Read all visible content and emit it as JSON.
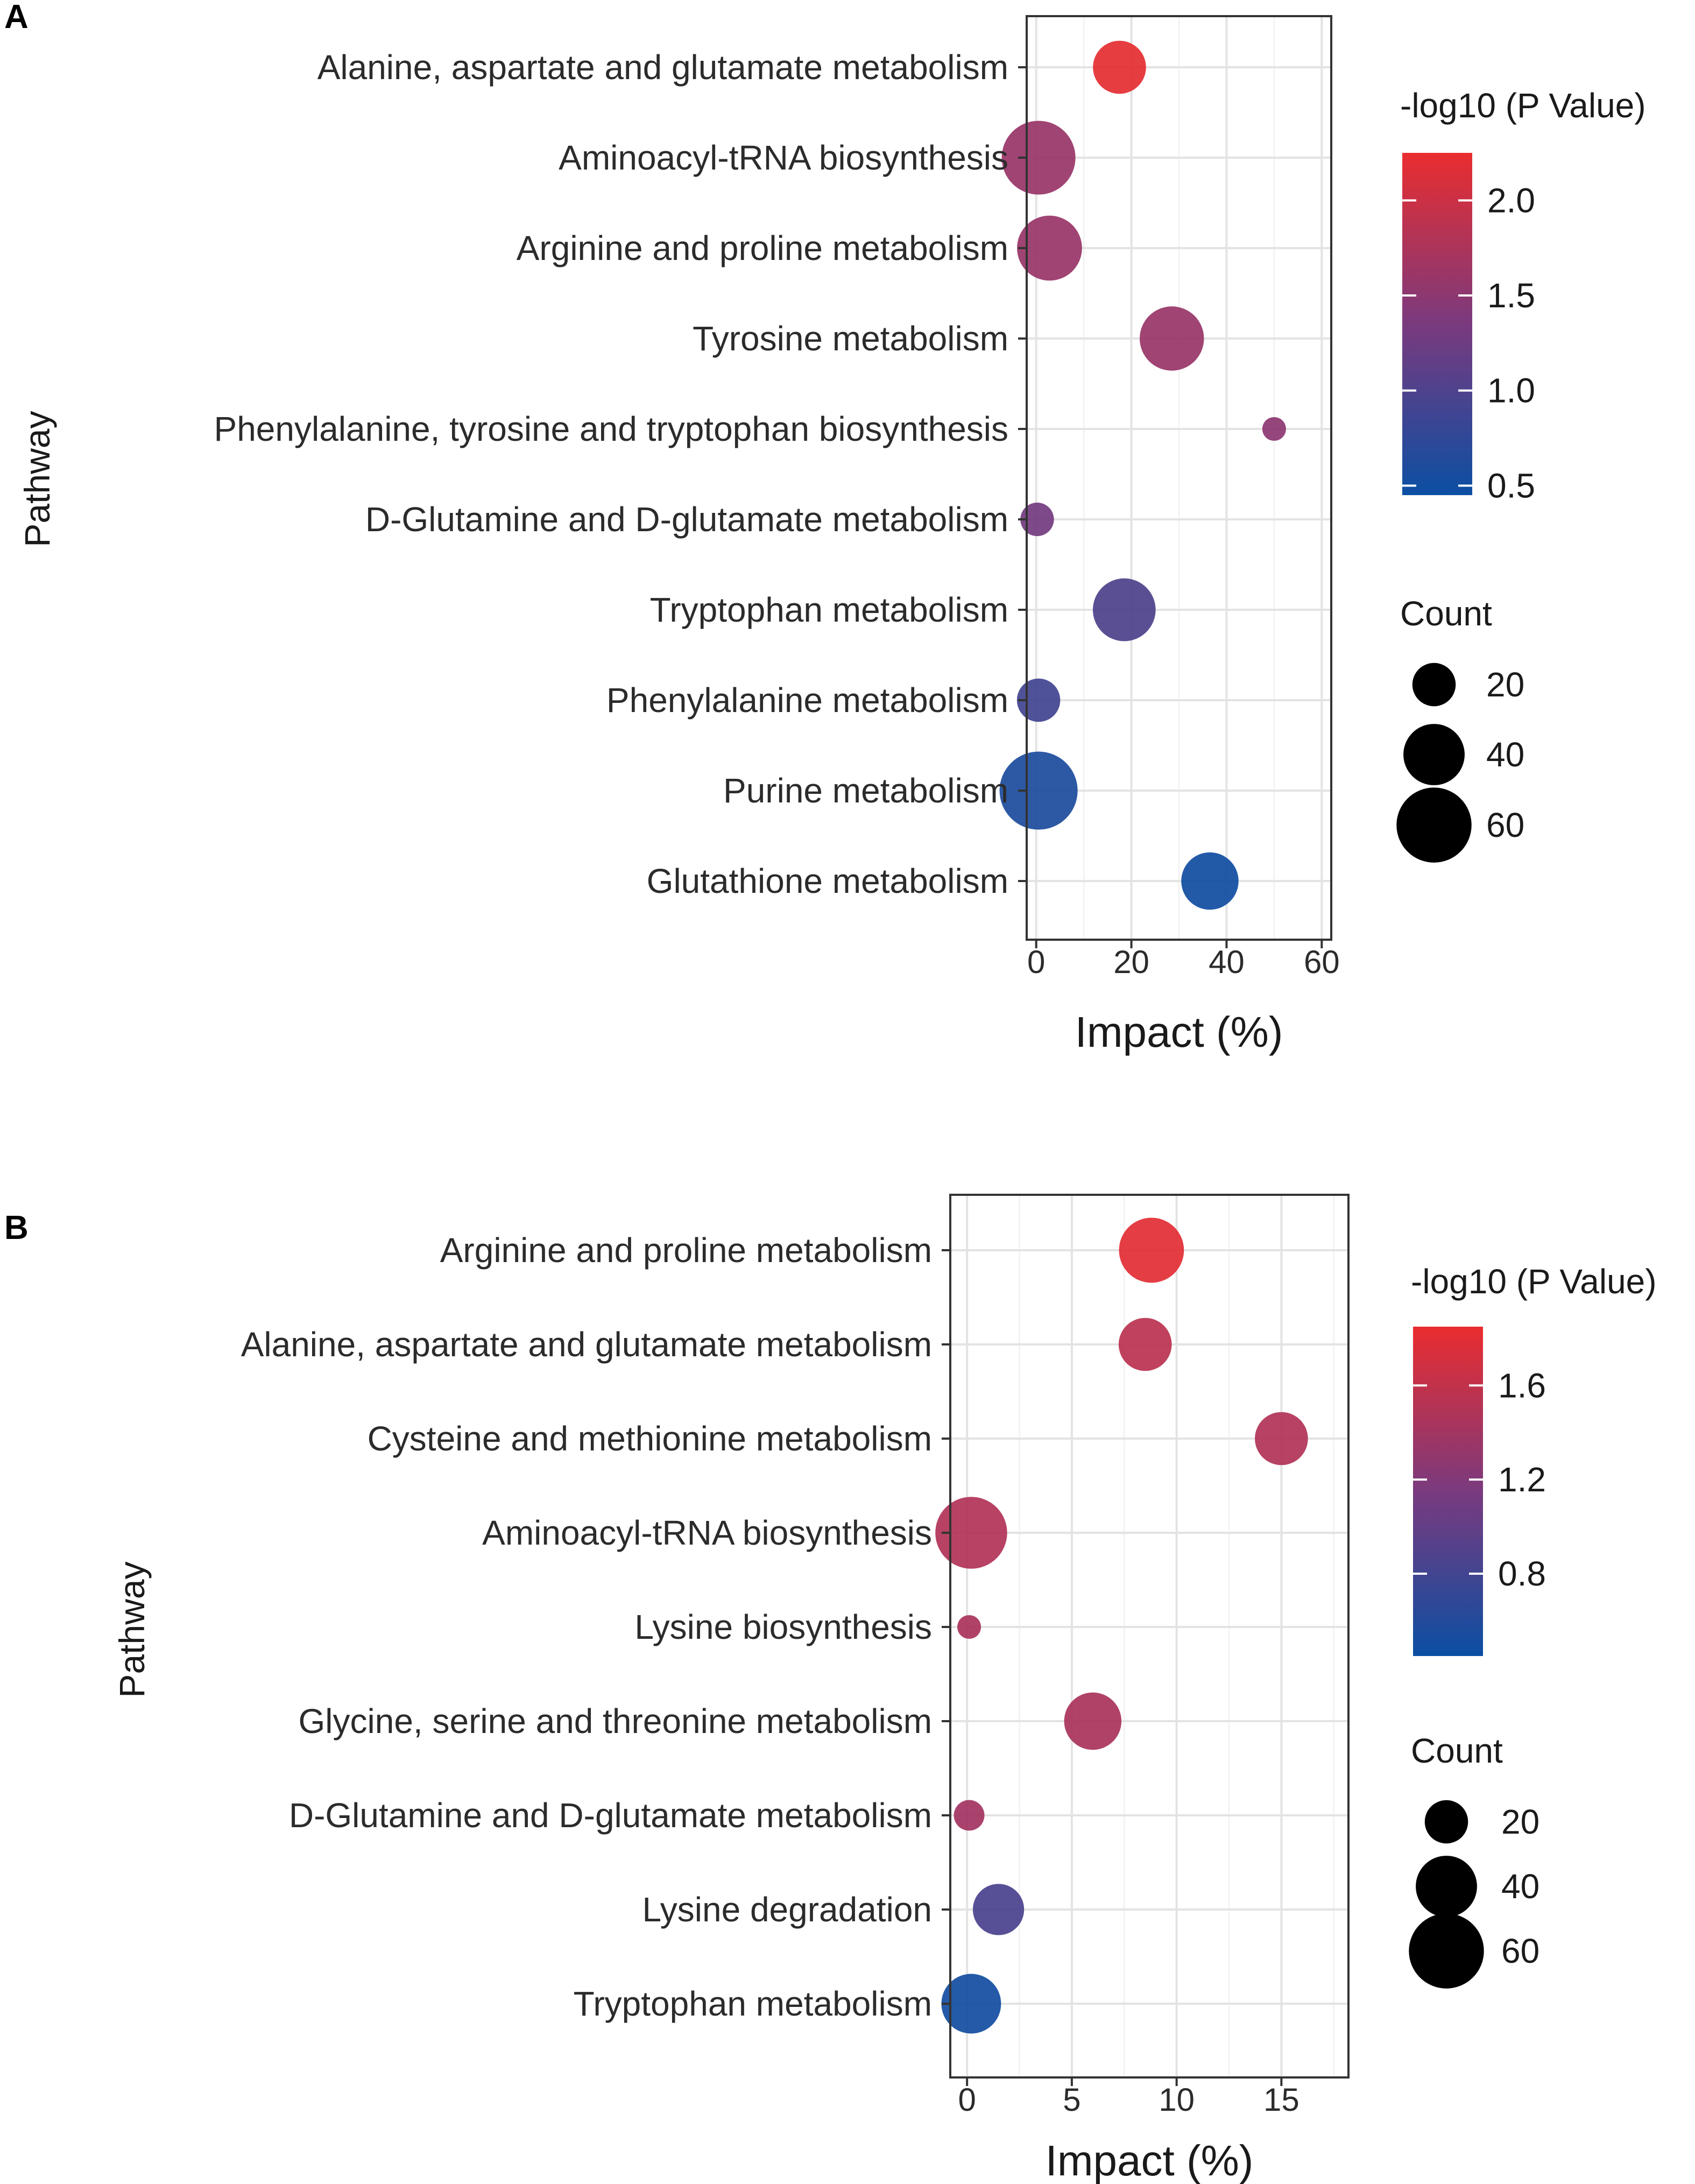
{
  "chart_data": [
    {
      "panel_letter": "A",
      "type": "scatter",
      "subtype": "bubble",
      "xlabel": "Impact (%)",
      "ylabel": "Pathway",
      "xlim": [
        -2,
        62
      ],
      "xticks": [
        0,
        20,
        40,
        60
      ],
      "color_legend": {
        "title": "-log10 (P Value)",
        "range": [
          0.45,
          2.25
        ],
        "ticks": [
          2.0,
          1.5,
          1.0,
          0.5
        ],
        "tick_labels": [
          "2.0",
          "1.5",
          "1.0",
          "0.5"
        ],
        "low_color": "#0b4fa3",
        "mid_color": "#7a3a7e",
        "high_color": "#ea2d2f"
      },
      "size_legend": {
        "title": "Count",
        "values": [
          20,
          40,
          60
        ],
        "labels": [
          "20",
          "40",
          "60"
        ]
      },
      "points": [
        {
          "pathway": "Alanine, aspartate and glutamate metabolism",
          "impact": 17.5,
          "neglog10p": 2.2,
          "count": 30
        },
        {
          "pathway": "Aminoacyl-tRNA biosynthesis",
          "impact": 0.5,
          "neglog10p": 1.6,
          "count": 58
        },
        {
          "pathway": "Arginine and proline metabolism",
          "impact": 2.8,
          "neglog10p": 1.6,
          "count": 45
        },
        {
          "pathway": "Tyrosine metabolism",
          "impact": 28.5,
          "neglog10p": 1.6,
          "count": 44
        },
        {
          "pathway": "Phenylalanine, tyrosine and tryptophan biosynthesis",
          "impact": 50,
          "neglog10p": 1.5,
          "count": 6
        },
        {
          "pathway": "D-Glutamine and D-glutamate metabolism",
          "impact": 0.2,
          "neglog10p": 1.3,
          "count": 12
        },
        {
          "pathway": "Tryptophan metabolism",
          "impact": 18.5,
          "neglog10p": 1.0,
          "count": 42
        },
        {
          "pathway": "Phenylalanine metabolism",
          "impact": 0.5,
          "neglog10p": 0.9,
          "count": 20
        },
        {
          "pathway": "Purine metabolism",
          "impact": 0.5,
          "neglog10p": 0.6,
          "count": 65
        },
        {
          "pathway": "Glutathione metabolism",
          "impact": 36.5,
          "neglog10p": 0.5,
          "count": 35
        }
      ]
    },
    {
      "panel_letter": "B",
      "type": "scatter",
      "subtype": "bubble",
      "xlabel": "Impact (%)",
      "ylabel": "Pathway",
      "xlim": [
        -0.8,
        18.2
      ],
      "xticks": [
        0,
        5,
        10,
        15
      ],
      "color_legend": {
        "title": "-log10 (P Value)",
        "range": [
          0.45,
          1.85
        ],
        "ticks": [
          1.6,
          1.2,
          0.8
        ],
        "tick_labels": [
          "1.6",
          "1.2",
          "0.8"
        ],
        "low_color": "#0b4fa3",
        "mid_color": "#7a3a7e",
        "high_color": "#ea2d2f"
      },
      "size_legend": {
        "title": "Count",
        "values": [
          20,
          40,
          60
        ],
        "labels": [
          "20",
          "40",
          "60"
        ]
      },
      "points": [
        {
          "pathway": "Arginine and proline metabolism",
          "impact": 8.8,
          "neglog10p": 1.8,
          "count": 45
        },
        {
          "pathway": "Alanine, aspartate and glutamate metabolism",
          "impact": 8.5,
          "neglog10p": 1.55,
          "count": 30
        },
        {
          "pathway": "Cysteine and methionine metabolism",
          "impact": 15.0,
          "neglog10p": 1.5,
          "count": 30
        },
        {
          "pathway": "Aminoacyl-tRNA biosynthesis",
          "impact": 0.2,
          "neglog10p": 1.5,
          "count": 55
        },
        {
          "pathway": "Lysine biosynthesis",
          "impact": 0.1,
          "neglog10p": 1.45,
          "count": 6
        },
        {
          "pathway": "Glycine, serine and threonine metabolism",
          "impact": 6.0,
          "neglog10p": 1.45,
          "count": 35
        },
        {
          "pathway": "D-Glutamine and D-glutamate metabolism",
          "impact": 0.1,
          "neglog10p": 1.4,
          "count": 10
        },
        {
          "pathway": "Lysine degradation",
          "impact": 1.5,
          "neglog10p": 0.85,
          "count": 28
        },
        {
          "pathway": "Tryptophan metabolism",
          "impact": 0.2,
          "neglog10p": 0.5,
          "count": 38
        }
      ]
    }
  ]
}
